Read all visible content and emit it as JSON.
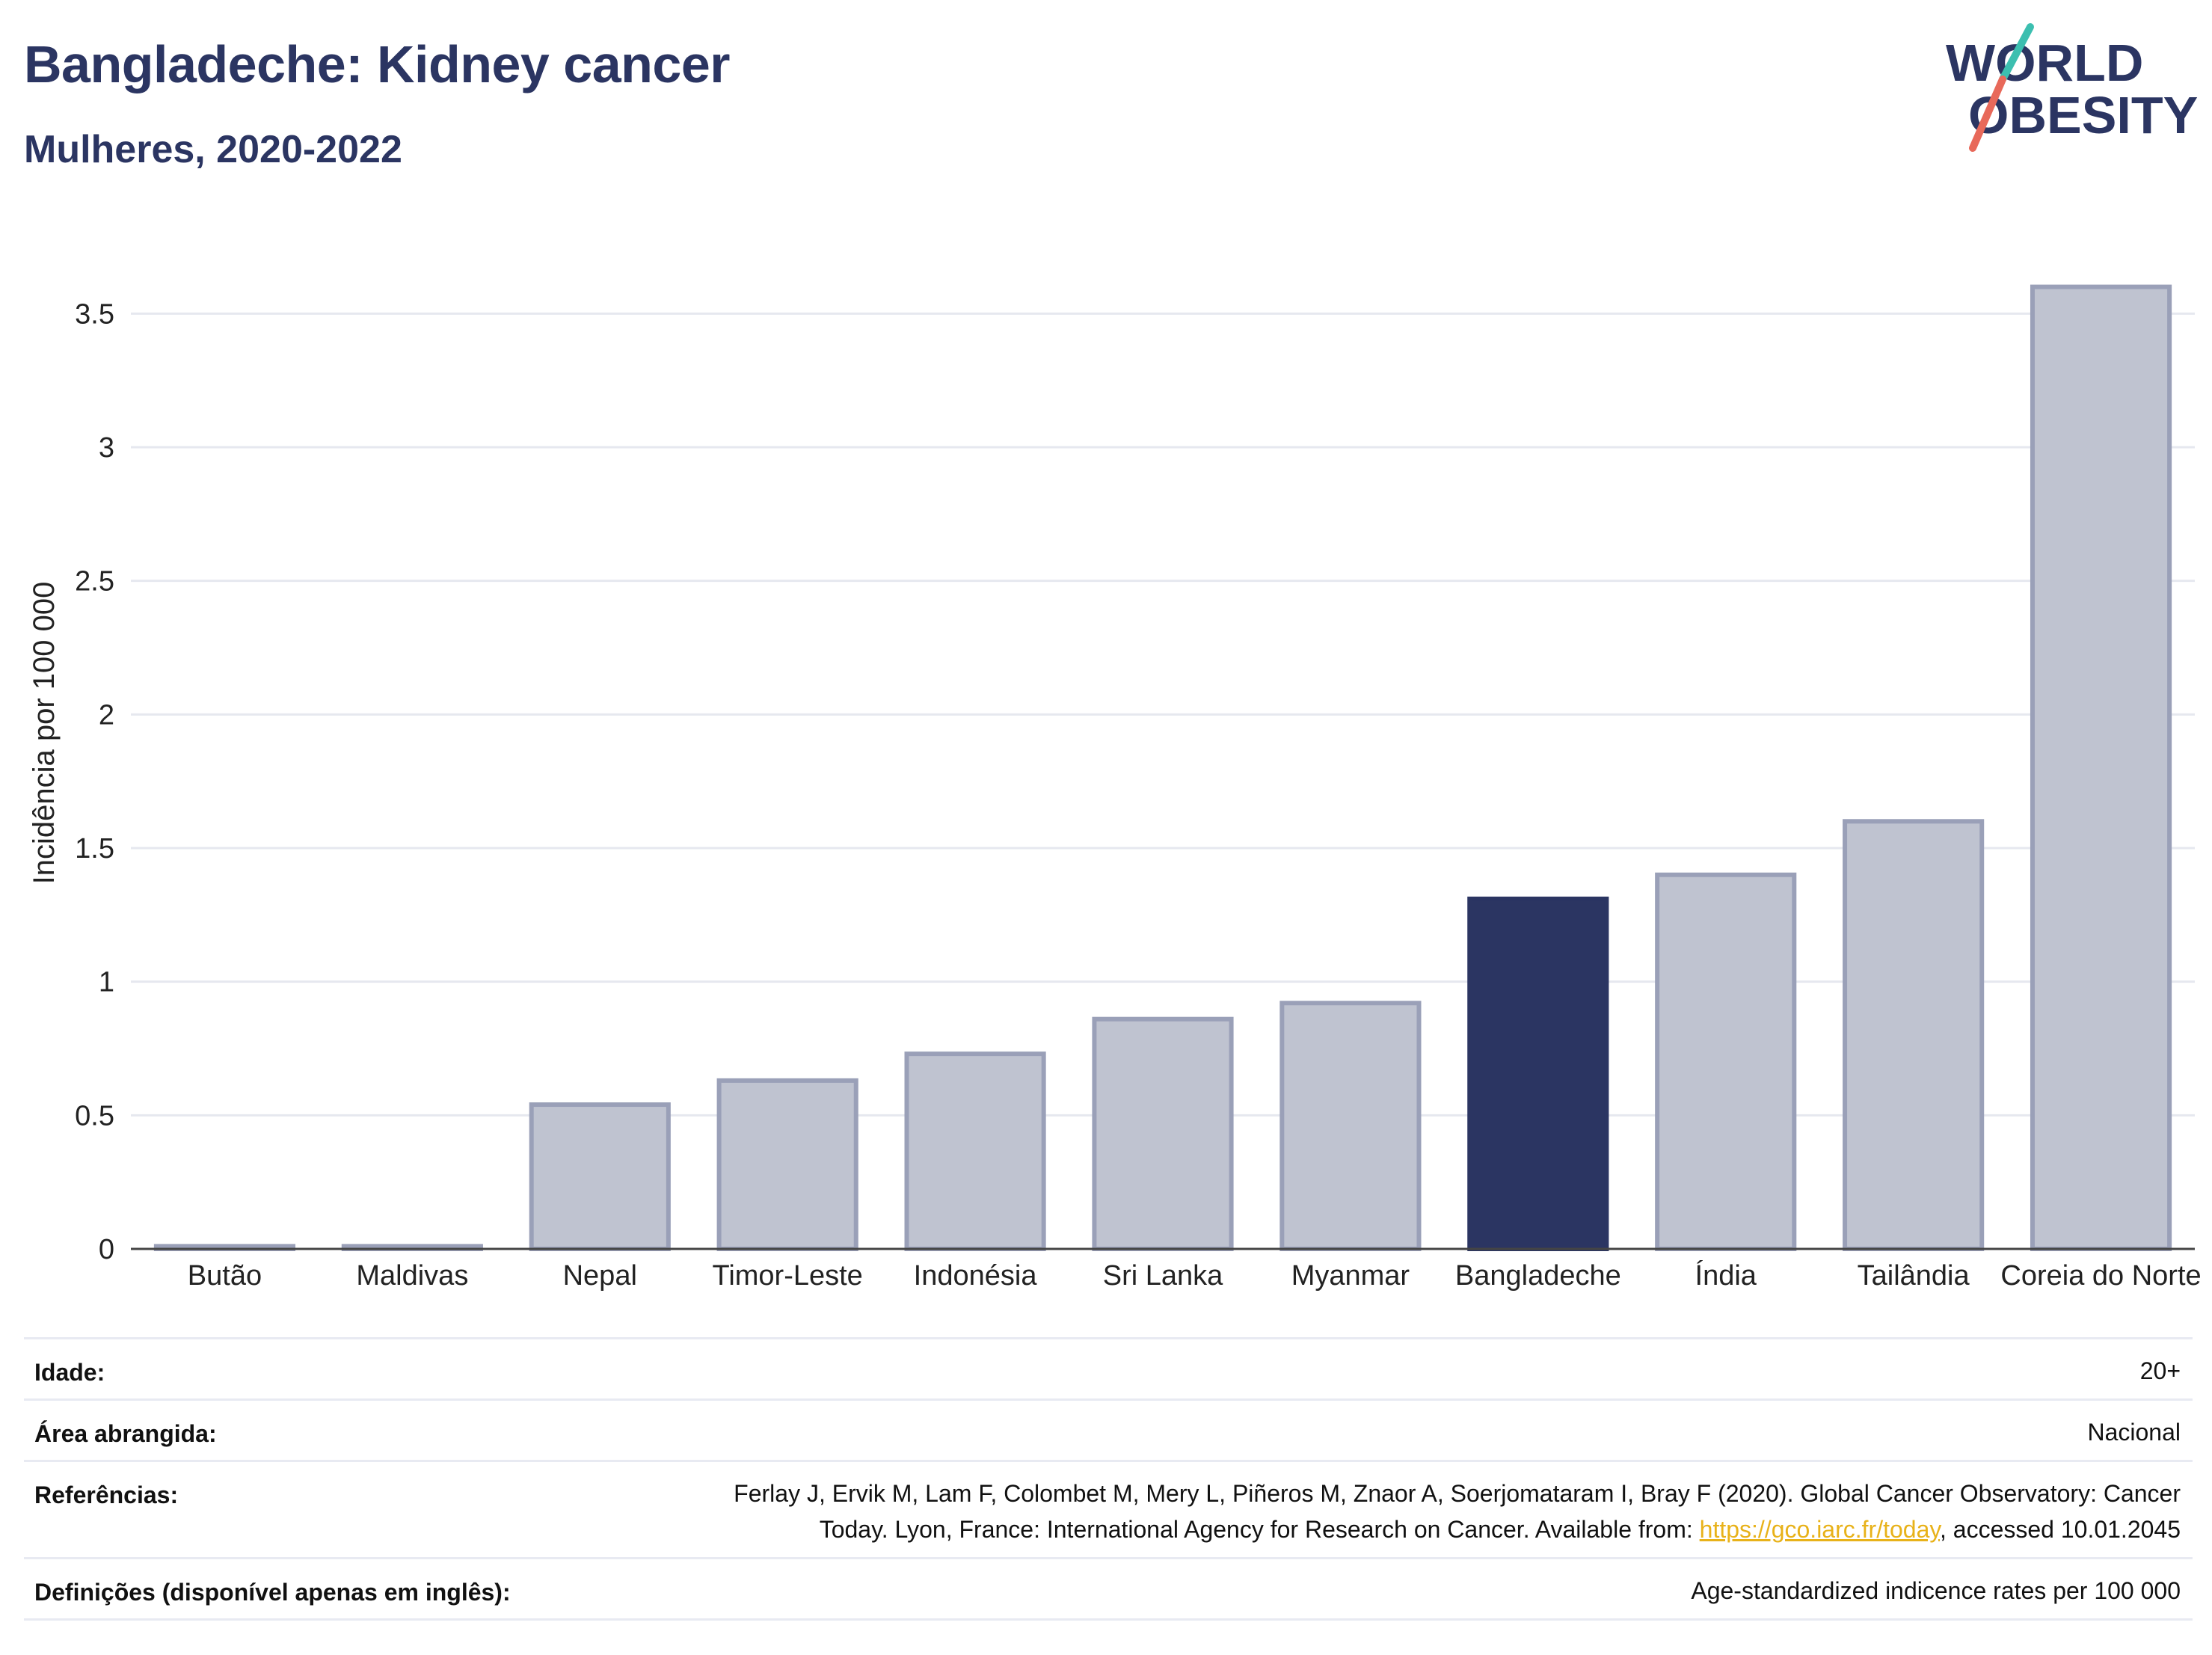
{
  "title": "Bangladeche: Kidney cancer",
  "subtitle": "Mulheres, 2020-2022",
  "logo": {
    "line1": "WORLD",
    "line2": "OBESITY"
  },
  "colors": {
    "highlight": "#2b3562",
    "bar": "#bfc3d0",
    "bar_edge": "#9aa0b8",
    "text": "#2b3562"
  },
  "chart_data": {
    "type": "bar",
    "categories": [
      "Butão",
      "Maldivas",
      "Nepal",
      "Timor-Leste",
      "Indonésia",
      "Sri Lanka",
      "Myanmar",
      "Bangladeche",
      "Índia",
      "Tailândia",
      "Coreia do Norte"
    ],
    "values": [
      0.01,
      0.01,
      0.54,
      0.63,
      0.73,
      0.86,
      0.92,
      1.31,
      1.4,
      1.6,
      3.6
    ],
    "highlight": "Bangladeche",
    "ylabel": "Incidência por 100 000",
    "xlabel": "",
    "ylim": [
      0,
      3.75
    ],
    "yticks": [
      0,
      0.5,
      1,
      1.5,
      2,
      2.5,
      3,
      3.5
    ],
    "ytick_labels": [
      "0",
      "0.5",
      "1",
      "1.5",
      "2",
      "2.5",
      "3",
      "3.5"
    ],
    "grid": true
  },
  "meta": {
    "age_label": "Idade:",
    "age_value": "20+",
    "area_label": "Área abrangida:",
    "area_value": "Nacional",
    "ref_label": "Referências:",
    "ref_line1": "Ferlay J, Ervik M, Lam F, Colombet M, Mery L, Piñeros M, Znaor A, Soerjomataram I, Bray F (2020). Global Cancer Observatory: Cancer",
    "ref_line2_pre": "Today. Lyon, France: International Agency for Research on Cancer. Available from: ",
    "ref_link": "https://gco.iarc.fr/today",
    "ref_line2_post": ", accessed 10.01.2045",
    "def_label": "Definições (disponível apenas em inglês):",
    "def_value": "Age-standardized indicence rates per 100 000"
  }
}
